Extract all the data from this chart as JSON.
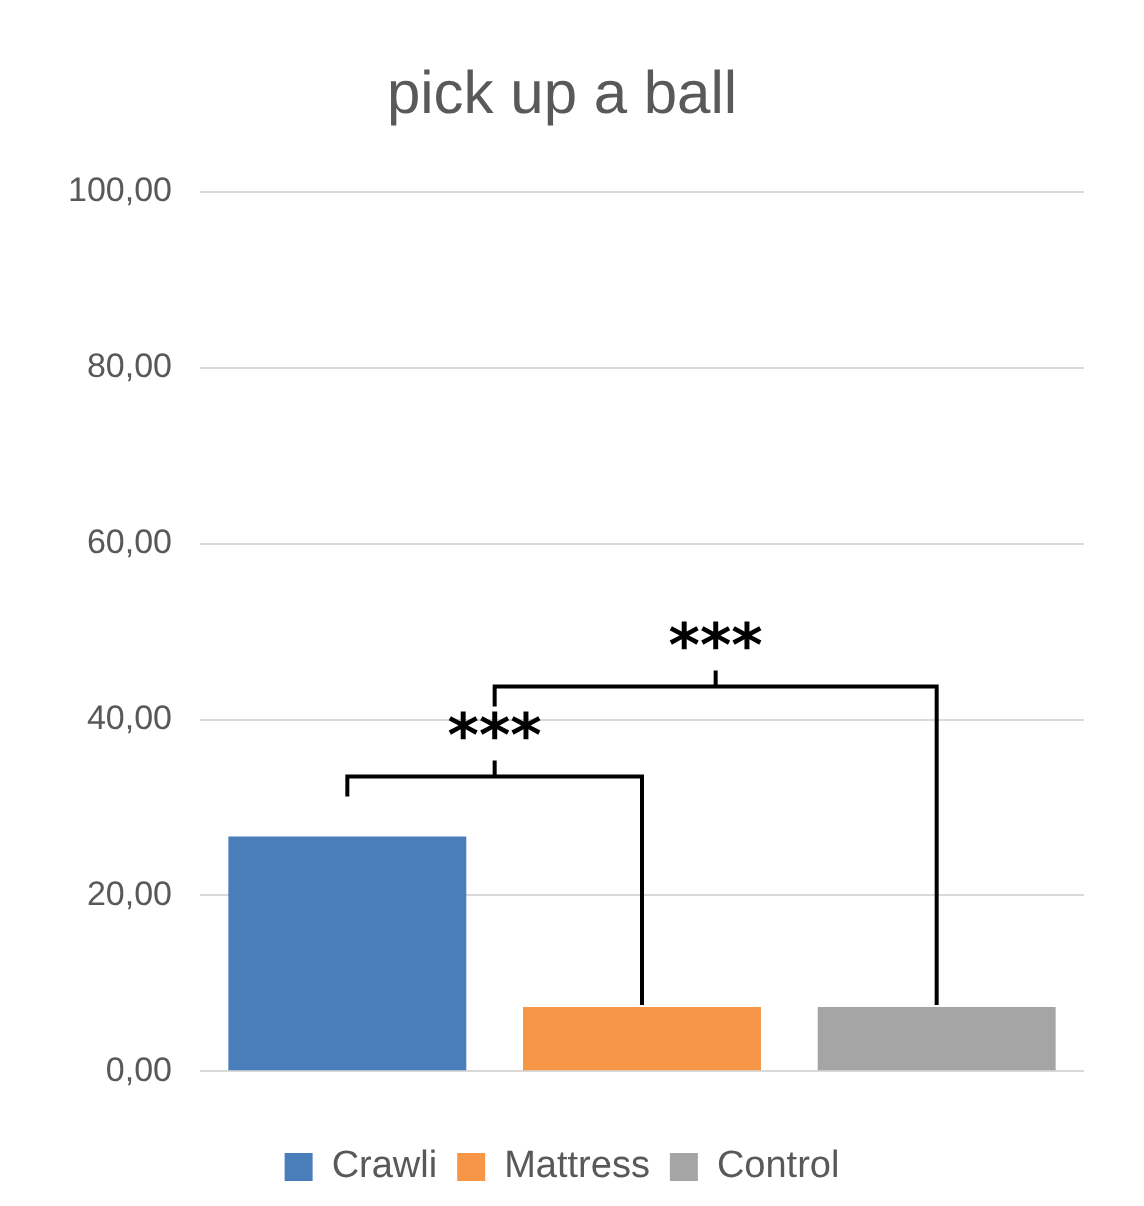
{
  "chart_data": {
    "type": "bar",
    "title": "pick up a ball",
    "categories": [
      null,
      null,
      null
    ],
    "series": [
      {
        "name": "Crawli",
        "color": "#4a7ebb",
        "values": [
          26.7,
          null,
          null
        ]
      },
      {
        "name": "Mattress",
        "color": "#f79646",
        "values": [
          null,
          7.3,
          null
        ]
      },
      {
        "name": "Control",
        "color": "#a5a5a5",
        "values": [
          null,
          null,
          7.3
        ]
      }
    ],
    "ylim": [
      0,
      100
    ],
    "yticks": [
      {
        "value": 0,
        "label": "0,00"
      },
      {
        "value": 20,
        "label": "20,00"
      },
      {
        "value": 40,
        "label": "40,00"
      },
      {
        "value": 60,
        "label": "60,00"
      },
      {
        "value": 80,
        "label": "80,00"
      },
      {
        "value": 100,
        "label": "100,00"
      }
    ],
    "grid": "y",
    "legend": "bottom",
    "annotations": [
      "***",
      "***"
    ]
  }
}
